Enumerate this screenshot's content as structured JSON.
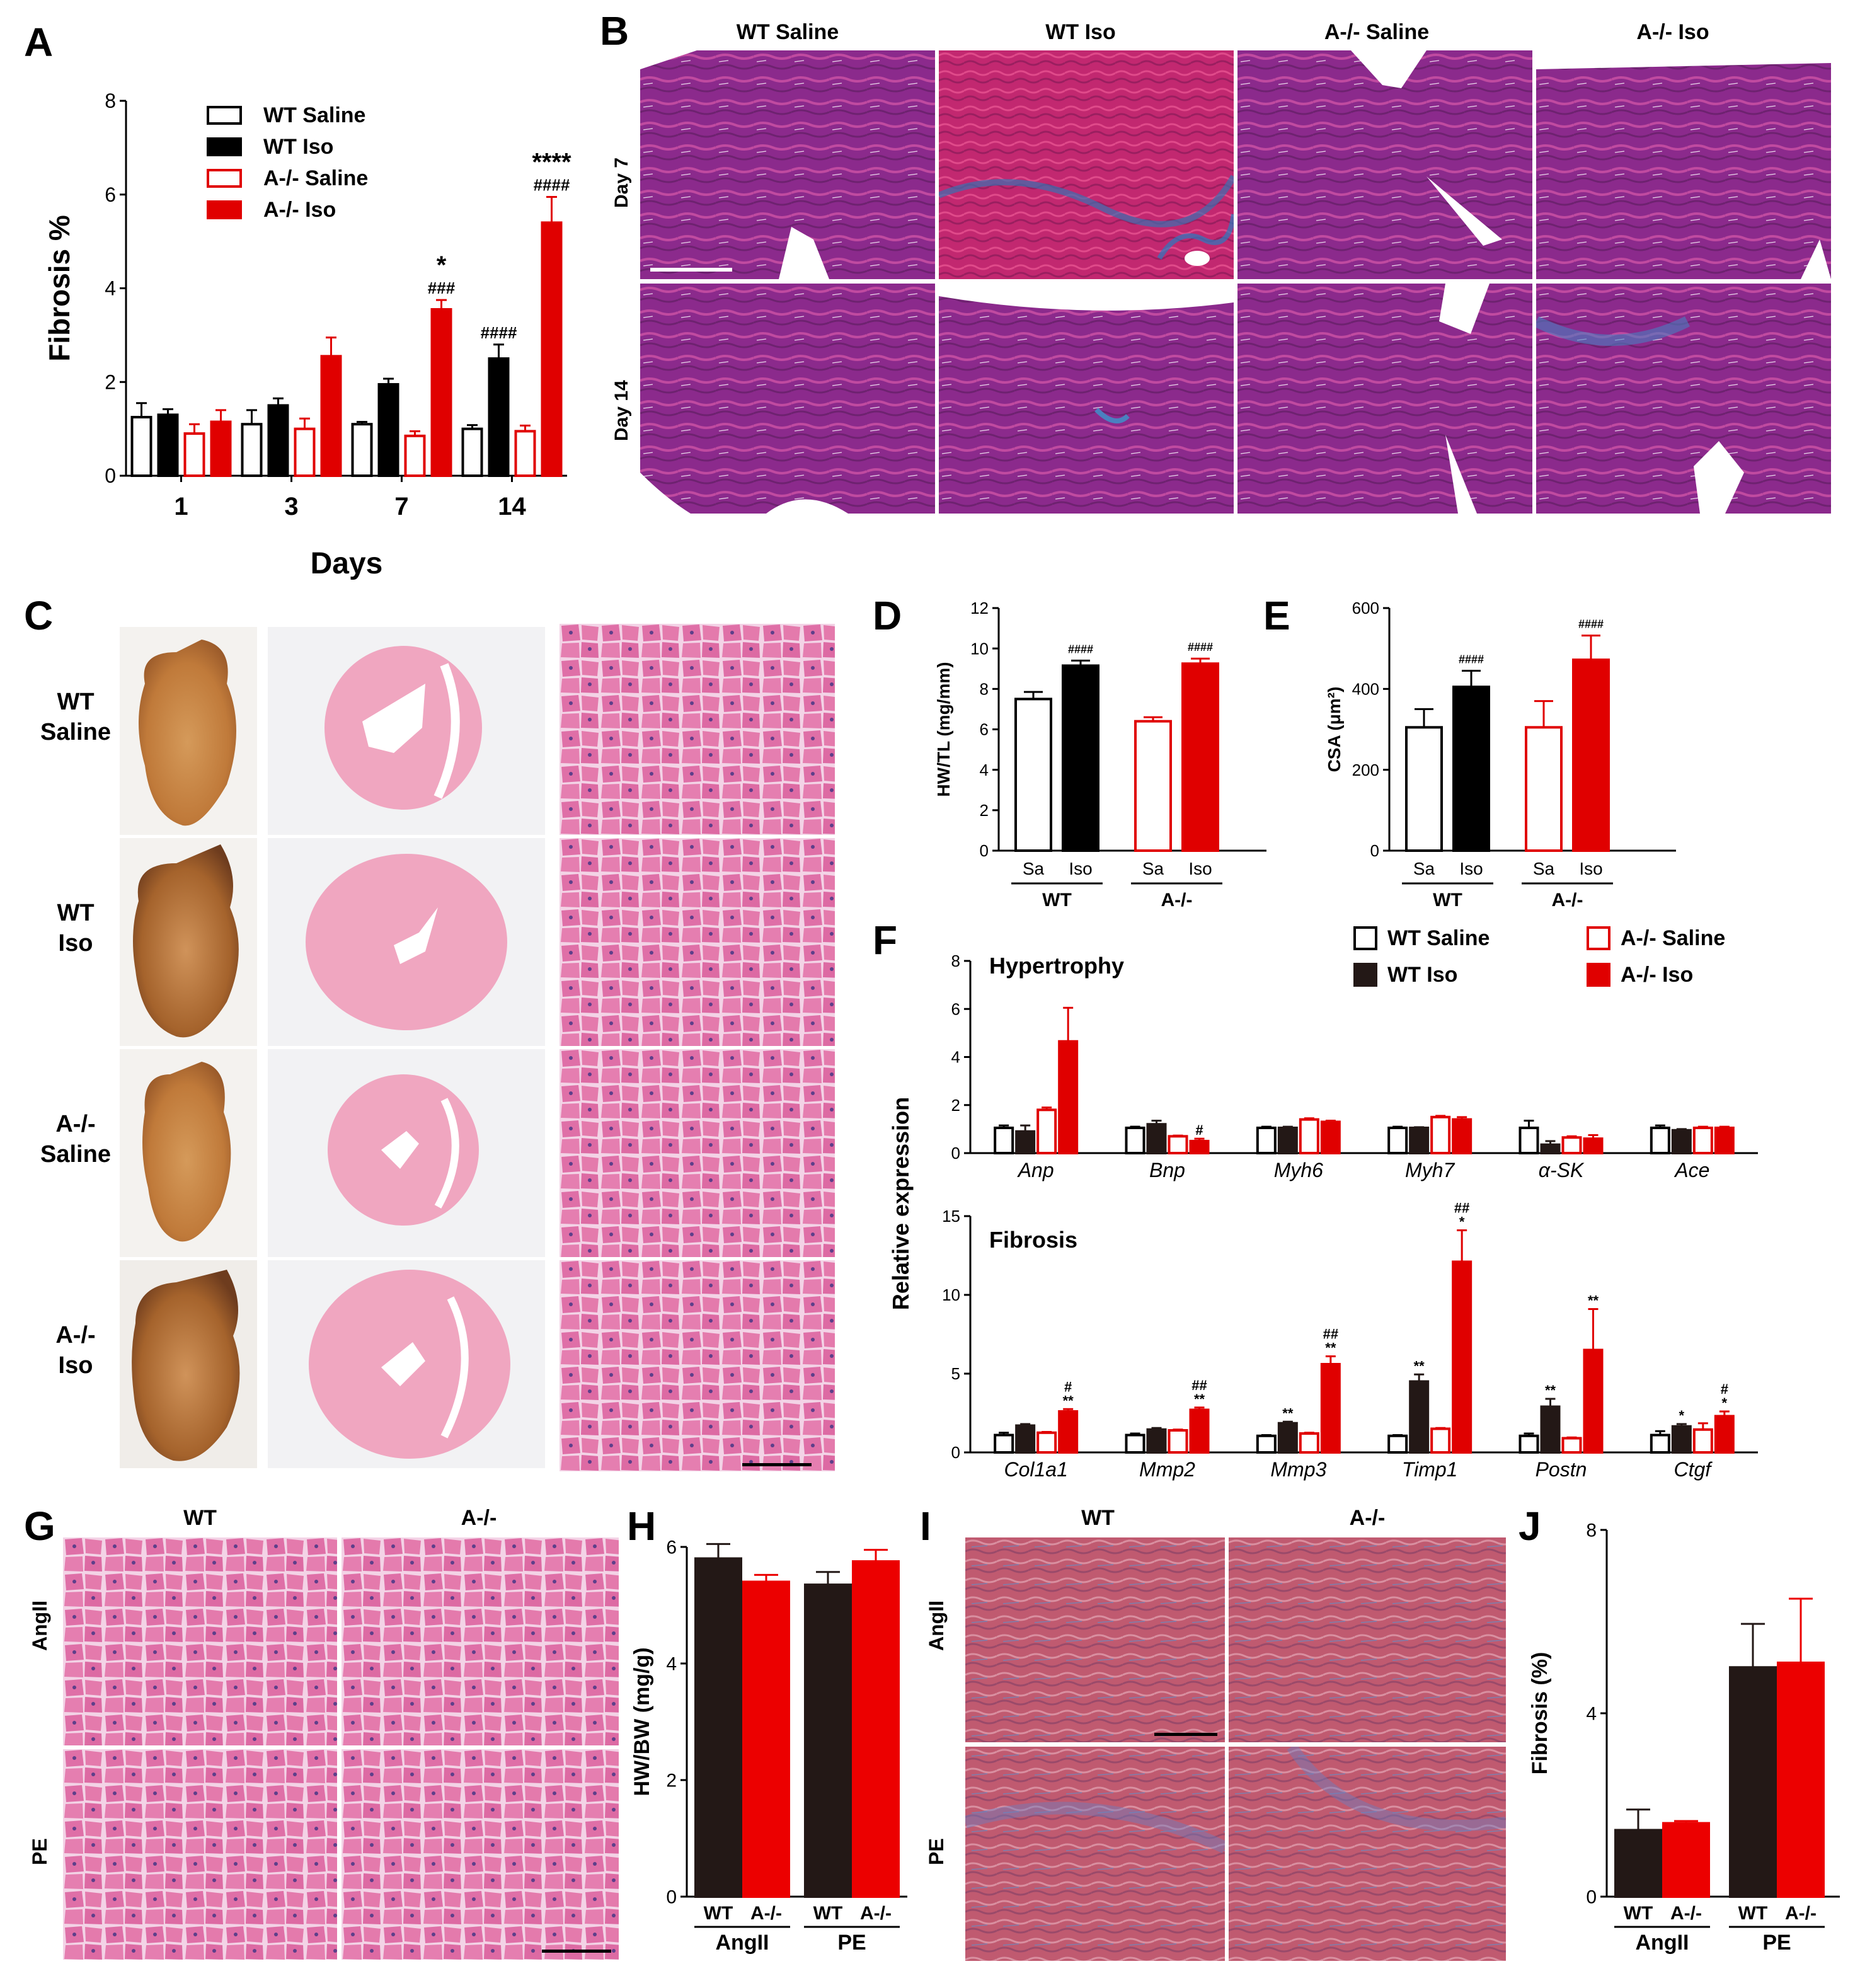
{
  "panel_letters": [
    "A",
    "B",
    "C",
    "D",
    "E",
    "F",
    "G",
    "H",
    "I",
    "J"
  ],
  "colors": {
    "saline_wt": "#000000",
    "iso_wt": "#000000",
    "saline_ko": "#e00000",
    "iso_ko": "#e00000",
    "wt_dark": "#231816",
    "ko_red": "#ec0000"
  },
  "panelB": {
    "columns": [
      "WT Saline",
      "WT Iso",
      "A-/- Saline",
      "A-/- Iso"
    ],
    "rows": [
      "Day 7",
      "Day 14"
    ]
  },
  "panelC": {
    "rows": [
      "WT\nSaline",
      "WT\nIso",
      "A-/-\nSaline",
      "A-/-\nIso"
    ]
  },
  "panelG": {
    "columns": [
      "WT",
      "A-/-"
    ],
    "rows": [
      "AngII",
      "PE"
    ]
  },
  "panelI": {
    "columns": [
      "WT",
      "A-/-"
    ],
    "rows": [
      "AngII",
      "PE"
    ]
  },
  "chart_data": [
    {
      "id": "A",
      "type": "bar",
      "ylabel": "Fibrosis %",
      "xlabel": "Days",
      "ylim": [
        0,
        8
      ],
      "yticks": [
        0,
        2,
        4,
        6,
        8
      ],
      "categories": [
        "1",
        "3",
        "7",
        "14"
      ],
      "series": [
        {
          "name": "WT Saline",
          "values": [
            1.25,
            1.1,
            1.1,
            1.0
          ],
          "errors": [
            0.3,
            0.3,
            0.05,
            0.08
          ],
          "fill": false,
          "color": "#000000"
        },
        {
          "name": "WT Iso",
          "values": [
            1.3,
            1.5,
            1.95,
            2.5
          ],
          "errors": [
            0.12,
            0.15,
            0.12,
            0.3
          ],
          "fill": true,
          "color": "#000000"
        },
        {
          "name": "A-/- Saline",
          "values": [
            0.9,
            1.0,
            0.85,
            0.95
          ],
          "errors": [
            0.2,
            0.22,
            0.1,
            0.12
          ],
          "fill": false,
          "color": "#e00000"
        },
        {
          "name": "A-/- Iso",
          "values": [
            1.15,
            2.55,
            3.55,
            5.4
          ],
          "errors": [
            0.25,
            0.4,
            0.2,
            0.55
          ],
          "fill": true,
          "color": "#e00000"
        }
      ],
      "annotations": [
        {
          "group": "7",
          "series": 3,
          "lines": [
            "*",
            "###"
          ]
        },
        {
          "group": "14",
          "series": 1,
          "lines": [
            "####"
          ]
        },
        {
          "group": "14",
          "series": 3,
          "lines": [
            "****",
            "####"
          ]
        }
      ]
    },
    {
      "id": "D",
      "type": "bar",
      "ylabel": "HW/TL (mg/mm)",
      "ylim": [
        0,
        12
      ],
      "yticks": [
        0,
        2,
        4,
        6,
        8,
        10,
        12
      ],
      "categories": [
        "Sa",
        "Iso",
        "Sa",
        "Iso"
      ],
      "groups": [
        "WT",
        "A-/-"
      ],
      "values": [
        7.5,
        9.15,
        6.4,
        9.25
      ],
      "errors": [
        0.35,
        0.25,
        0.2,
        0.25
      ],
      "fills": [
        false,
        true,
        false,
        true
      ],
      "colors": [
        "#000000",
        "#000000",
        "#e00000",
        "#e00000"
      ],
      "annotations": [
        {
          "index": 1,
          "text": "####"
        },
        {
          "index": 3,
          "text": "####"
        }
      ]
    },
    {
      "id": "E",
      "type": "bar",
      "ylabel": "CSA (μm²)",
      "ylim": [
        0,
        600
      ],
      "yticks": [
        0,
        200,
        400,
        600
      ],
      "categories": [
        "Sa",
        "Iso",
        "Sa",
        "Iso"
      ],
      "groups": [
        "WT",
        "A-/-"
      ],
      "values": [
        305,
        405,
        305,
        472
      ],
      "errors": [
        45,
        40,
        65,
        60
      ],
      "fills": [
        false,
        true,
        false,
        true
      ],
      "colors": [
        "#000000",
        "#000000",
        "#e00000",
        "#e00000"
      ],
      "annotations": [
        {
          "index": 1,
          "text": "####"
        },
        {
          "index": 3,
          "text": "####"
        }
      ]
    },
    {
      "id": "F",
      "type": "bar",
      "ylabel": "Relative expression",
      "legend": [
        "WT Saline",
        "WT Iso",
        "A-/- Saline",
        "A-/- Iso"
      ],
      "subplots": [
        {
          "title": "Hypertrophy",
          "ylim": [
            0,
            8
          ],
          "yticks": [
            0,
            2,
            4,
            6,
            8
          ],
          "categories": [
            "Anp",
            "Bnp",
            "Myh6",
            "Myh7",
            "α-SK",
            "Ace"
          ],
          "series": [
            {
              "name": "WT Saline",
              "values": [
                1.05,
                1.05,
                1.05,
                1.05,
                1.05,
                1.05
              ],
              "errors": [
                0.1,
                0.05,
                0.05,
                0.05,
                0.3,
                0.1
              ]
            },
            {
              "name": "WT Iso",
              "values": [
                0.9,
                1.2,
                1.05,
                1.05,
                0.35,
                0.95
              ],
              "errors": [
                0.25,
                0.15,
                0.05,
                0.03,
                0.15,
                0.05
              ]
            },
            {
              "name": "A-/- Saline",
              "values": [
                1.8,
                0.7,
                1.4,
                1.5,
                0.65,
                1.05
              ],
              "errors": [
                0.1,
                0.03,
                0.05,
                0.05,
                0.05,
                0.05
              ]
            },
            {
              "name": "A-/- Iso",
              "values": [
                4.65,
                0.5,
                1.3,
                1.4,
                0.6,
                1.05
              ],
              "errors": [
                1.4,
                0.1,
                0.05,
                0.1,
                0.15,
                0.05
              ]
            }
          ],
          "annotations": [
            {
              "cat": "Bnp",
              "series": 3,
              "lines": [
                "#"
              ]
            }
          ]
        },
        {
          "title": "Fibrosis",
          "ylim": [
            0,
            15
          ],
          "yticks": [
            0,
            5,
            10,
            15
          ],
          "categories": [
            "Col1a1",
            "Mmp2",
            "Mmp3",
            "Timp1",
            "Postn",
            "Ctgf"
          ],
          "series": [
            {
              "name": "WT Saline",
              "values": [
                1.1,
                1.1,
                1.05,
                1.05,
                1.05,
                1.1
              ],
              "errors": [
                0.15,
                0.1,
                0.05,
                0.05,
                0.15,
                0.25
              ]
            },
            {
              "name": "WT Iso",
              "values": [
                1.7,
                1.45,
                1.85,
                4.5,
                2.9,
                1.65
              ],
              "errors": [
                0.1,
                0.1,
                0.1,
                0.45,
                0.5,
                0.15
              ]
            },
            {
              "name": "A-/- Saline",
              "values": [
                1.25,
                1.4,
                1.2,
                1.5,
                0.9,
                1.45
              ],
              "errors": [
                0.05,
                0.05,
                0.05,
                0.05,
                0.05,
                0.4
              ]
            },
            {
              "name": "A-/- Iso",
              "values": [
                2.6,
                2.7,
                5.6,
                12.1,
                6.5,
                2.3
              ],
              "errors": [
                0.15,
                0.15,
                0.5,
                2.0,
                2.6,
                0.3
              ]
            }
          ],
          "annotations": [
            {
              "cat": "Col1a1",
              "series": 3,
              "lines": [
                "#",
                "**"
              ]
            },
            {
              "cat": "Mmp2",
              "series": 3,
              "lines": [
                "##",
                "**"
              ]
            },
            {
              "cat": "Mmp3",
              "series": 1,
              "lines": [
                "**"
              ]
            },
            {
              "cat": "Mmp3",
              "series": 3,
              "lines": [
                "##",
                "**"
              ]
            },
            {
              "cat": "Timp1",
              "series": 1,
              "lines": [
                "**"
              ]
            },
            {
              "cat": "Timp1",
              "series": 3,
              "lines": [
                "##",
                "*"
              ]
            },
            {
              "cat": "Postn",
              "series": 1,
              "lines": [
                "**"
              ]
            },
            {
              "cat": "Postn",
              "series": 3,
              "lines": [
                "**"
              ]
            },
            {
              "cat": "Ctgf",
              "series": 1,
              "lines": [
                "*"
              ]
            },
            {
              "cat": "Ctgf",
              "series": 3,
              "lines": [
                "#",
                "*"
              ]
            }
          ]
        }
      ]
    },
    {
      "id": "H",
      "type": "bar",
      "ylabel": "HW/BW (mg/g)",
      "ylim": [
        0,
        6
      ],
      "yticks": [
        0,
        2,
        4,
        6
      ],
      "categories": [
        "WT",
        "A-/-",
        "WT",
        "A-/-"
      ],
      "groups": [
        "AngII",
        "PE"
      ],
      "values": [
        5.8,
        5.4,
        5.35,
        5.75
      ],
      "errors": [
        0.25,
        0.12,
        0.22,
        0.2
      ],
      "colors": [
        "#231816",
        "#ec0000",
        "#231816",
        "#ec0000"
      ]
    },
    {
      "id": "J",
      "type": "bar",
      "ylabel": "Fibrosis (%)",
      "ylim": [
        0,
        8
      ],
      "yticks": [
        0,
        4,
        8
      ],
      "categories": [
        "WT",
        "A-/-",
        "WT",
        "A-/-"
      ],
      "groups": [
        "AngII",
        "PE"
      ],
      "values": [
        1.45,
        1.6,
        5.0,
        5.1
      ],
      "errors": [
        0.45,
        0.05,
        0.95,
        1.4
      ],
      "colors": [
        "#231816",
        "#ec0000",
        "#231816",
        "#ec0000"
      ]
    }
  ]
}
